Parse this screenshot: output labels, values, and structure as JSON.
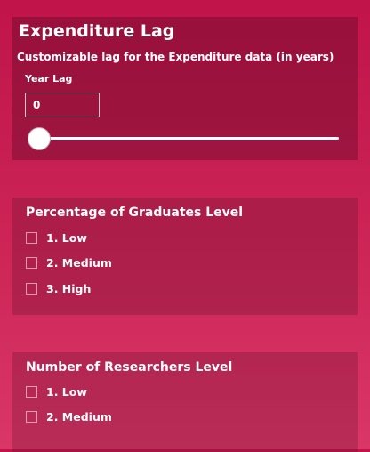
{
  "expenditure_lag": {
    "title": "Expenditure Lag",
    "subtitle": "Customizable lag for the Expenditure data (in years)",
    "year_lag_label": "Year Lag",
    "year_lag_value": "0",
    "slider_value": 0
  },
  "graduates": {
    "title": "Percentage of Graduates Level",
    "options": [
      {
        "label": "1. Low",
        "checked": false
      },
      {
        "label": "2. Medium",
        "checked": false
      },
      {
        "label": "3. High",
        "checked": false
      }
    ]
  },
  "researchers": {
    "title": "Number of Researchers Level",
    "options": [
      {
        "label": "1. Low",
        "checked": false
      },
      {
        "label": "2. Medium",
        "checked": false
      }
    ]
  },
  "colors": {
    "background": "#c8204f",
    "panel": "#9a1640",
    "text": "#ffffff"
  }
}
